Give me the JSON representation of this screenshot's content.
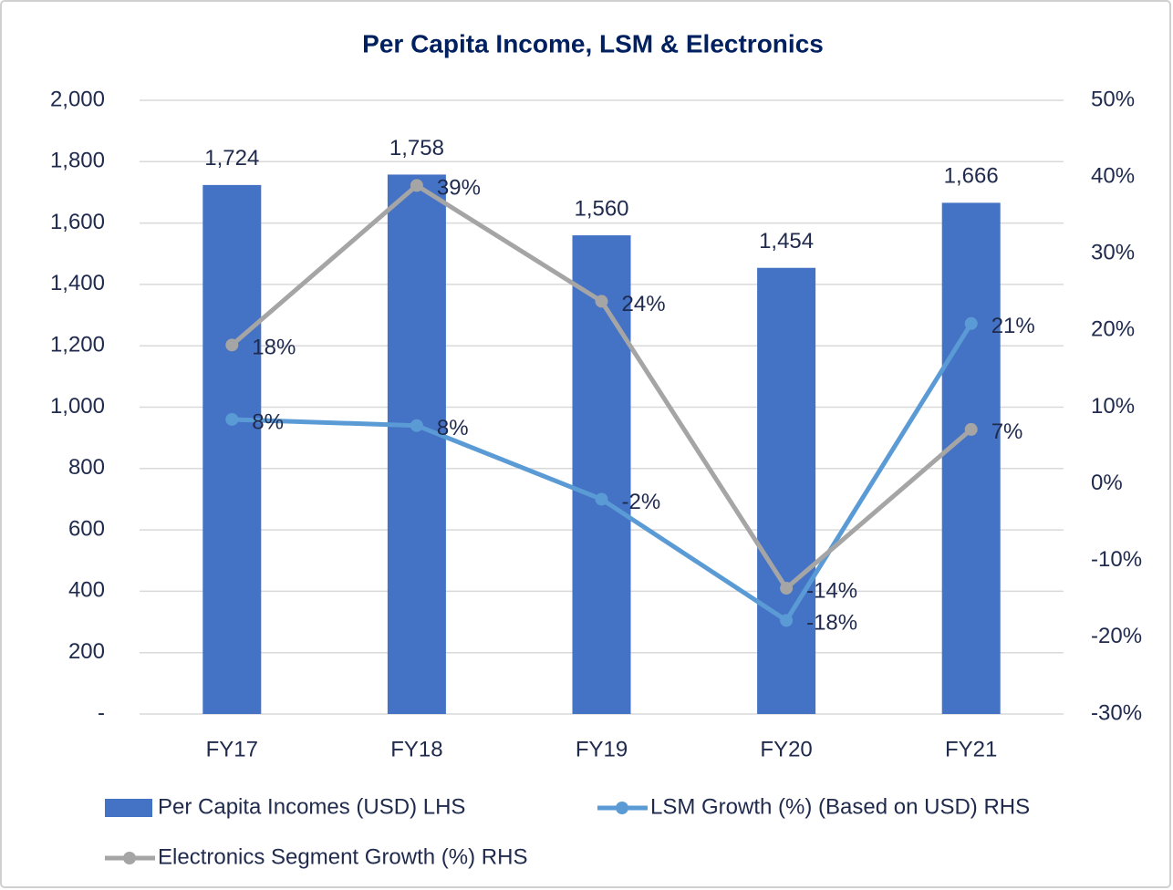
{
  "chart_data": {
    "type": "bar",
    "title": "Per Capita Income, LSM & Electronics",
    "categories": [
      "FY17",
      "FY18",
      "FY19",
      "FY20",
      "FY21"
    ],
    "series": [
      {
        "name": "Per Capita Incomes (USD) LHS",
        "type": "bar",
        "color": "#4472c4",
        "values": [
          1724,
          1758,
          1560,
          1454,
          1666
        ],
        "value_labels": [
          "1,724",
          "1,758",
          "1,560",
          "1,454",
          "1,666"
        ]
      },
      {
        "name": "LSM Growth (%) (Based on USD) RHS",
        "type": "line",
        "axis": "y2",
        "color": "#5b9bd5",
        "values": [
          8.4,
          7.6,
          -2.0,
          -17.8,
          20.9
        ],
        "value_labels": [
          "8%",
          "8%",
          "-2%",
          "-18%",
          "21%"
        ]
      },
      {
        "name": "Electronics Segment Growth (%) RHS",
        "type": "line",
        "axis": "y2",
        "color": "#a5a5a5",
        "values": [
          18.1,
          38.9,
          23.8,
          -13.6,
          7.1
        ],
        "value_labels": [
          "18%",
          "39%",
          "24%",
          "-14%",
          "7%"
        ]
      }
    ],
    "ylim": [
      0,
      2000
    ],
    "yticks": [
      {
        "value": 0,
        "label": "-"
      },
      200,
      400,
      600,
      800,
      {
        "value": 1000,
        "label": "1,000"
      },
      {
        "value": 1200,
        "label": "1,200"
      },
      {
        "value": 1400,
        "label": "1,400"
      },
      {
        "value": 1600,
        "label": "1,600"
      },
      {
        "value": 1800,
        "label": "1,800"
      },
      {
        "value": 2000,
        "label": "2,000"
      }
    ],
    "y2lim": [
      -30,
      50
    ],
    "y2ticks": [
      {
        "value": -30,
        "label": "-30%"
      },
      {
        "value": -20,
        "label": "-20%"
      },
      {
        "value": -10,
        "label": "-10%"
      },
      {
        "value": 0,
        "label": "0%"
      },
      {
        "value": 10,
        "label": "10%"
      },
      {
        "value": 20,
        "label": "20%"
      },
      {
        "value": 30,
        "label": "30%"
      },
      {
        "value": 40,
        "label": "40%"
      },
      {
        "value": 50,
        "label": "50%"
      }
    ],
    "grid": true,
    "legend": "bottom"
  }
}
